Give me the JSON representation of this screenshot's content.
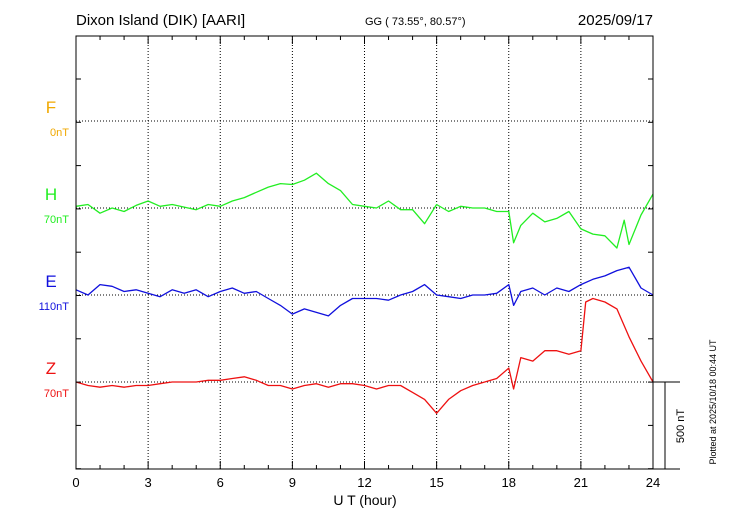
{
  "chart_data": {
    "type": "line",
    "title": "Dixon Island (DIK)  [AARI]",
    "subtitle": "GG ( 73.55°,  80.57°)",
    "date": "2025/09/17",
    "xlabel": "U T (hour)",
    "xlim": [
      0,
      24
    ],
    "xticks": [
      "0",
      "3",
      "6",
      "9",
      "12",
      "15",
      "18",
      "21",
      "24"
    ],
    "grid": true,
    "scale_bar_label": "500 nT",
    "scale_bar_nT": 500,
    "footnote": "Plotted at 2025/10/18 00:44 UT",
    "series": [
      {
        "name": "F",
        "baseline_label": "0nT",
        "color": "#f0a800",
        "x": [],
        "y": []
      },
      {
        "name": "H",
        "baseline_label": "70nT",
        "color": "#22ee22",
        "x": [
          0,
          0.5,
          1,
          1.5,
          2,
          2.5,
          3,
          3.5,
          4,
          4.5,
          5,
          5.5,
          6,
          6.5,
          7,
          7.5,
          8,
          8.5,
          9,
          9.5,
          10,
          10.5,
          11,
          11.5,
          12,
          12.5,
          13,
          13.5,
          14,
          14.5,
          15,
          15.5,
          16,
          16.5,
          17,
          17.5,
          18,
          18.2,
          18.5,
          19,
          19.5,
          20,
          20.5,
          21,
          21.5,
          22,
          22.5,
          22.8,
          23,
          23.5,
          24
        ],
        "y": [
          10,
          20,
          -30,
          0,
          -20,
          15,
          40,
          10,
          20,
          5,
          -10,
          20,
          10,
          40,
          60,
          90,
          120,
          140,
          135,
          160,
          200,
          140,
          100,
          20,
          10,
          0,
          40,
          -10,
          -10,
          -90,
          20,
          -20,
          10,
          0,
          0,
          -20,
          -20,
          -200,
          -100,
          -30,
          -80,
          -60,
          -20,
          -120,
          -150,
          -160,
          -230,
          -70,
          -210,
          -40,
          80
        ]
      },
      {
        "name": "E",
        "baseline_label": "110nT",
        "color": "#1010dd",
        "x": [
          0,
          0.5,
          1,
          1.5,
          2,
          2.5,
          3,
          3.5,
          4,
          4.5,
          5,
          5.5,
          6,
          6.5,
          7,
          7.5,
          8,
          8.5,
          9,
          9.5,
          10,
          10.5,
          11,
          11.5,
          12,
          12.5,
          13,
          13.5,
          14,
          14.5,
          15,
          15.5,
          16,
          16.5,
          17,
          17.5,
          18,
          18.2,
          18.5,
          19,
          19.5,
          20,
          20.5,
          21,
          21.5,
          22,
          22.5,
          23,
          23.5,
          24
        ],
        "y": [
          30,
          0,
          60,
          50,
          20,
          30,
          10,
          -10,
          30,
          10,
          30,
          -10,
          20,
          40,
          10,
          20,
          -20,
          -60,
          -110,
          -80,
          -100,
          -120,
          -60,
          -20,
          -20,
          -20,
          -30,
          0,
          20,
          60,
          0,
          -10,
          -20,
          0,
          0,
          10,
          60,
          -60,
          20,
          40,
          0,
          40,
          20,
          60,
          90,
          110,
          140,
          160,
          40,
          0
        ]
      },
      {
        "name": "Z",
        "baseline_label": "70nT",
        "color": "#ee1111",
        "x": [
          0,
          0.5,
          1,
          1.5,
          2,
          2.5,
          3,
          3.5,
          4,
          4.5,
          5,
          5.5,
          6,
          6.5,
          7,
          7.5,
          8,
          8.5,
          9,
          9.5,
          10,
          10.5,
          11,
          11.5,
          12,
          12.5,
          13,
          13.5,
          14,
          14.5,
          15,
          15.5,
          16,
          16.5,
          17,
          17.5,
          18,
          18.2,
          18.5,
          19,
          19.5,
          20,
          20.5,
          21,
          21.2,
          21.5,
          22,
          22.5,
          23,
          23.5,
          24
        ],
        "y": [
          0,
          -20,
          -30,
          -20,
          -30,
          -20,
          -20,
          -10,
          0,
          0,
          0,
          10,
          10,
          20,
          30,
          10,
          -20,
          -20,
          -40,
          -20,
          -10,
          -30,
          -10,
          -10,
          -20,
          -40,
          -20,
          -20,
          -60,
          -100,
          -180,
          -100,
          -50,
          -20,
          0,
          20,
          80,
          -40,
          140,
          120,
          180,
          180,
          160,
          180,
          460,
          480,
          460,
          420,
          260,
          120,
          0
        ]
      }
    ]
  }
}
